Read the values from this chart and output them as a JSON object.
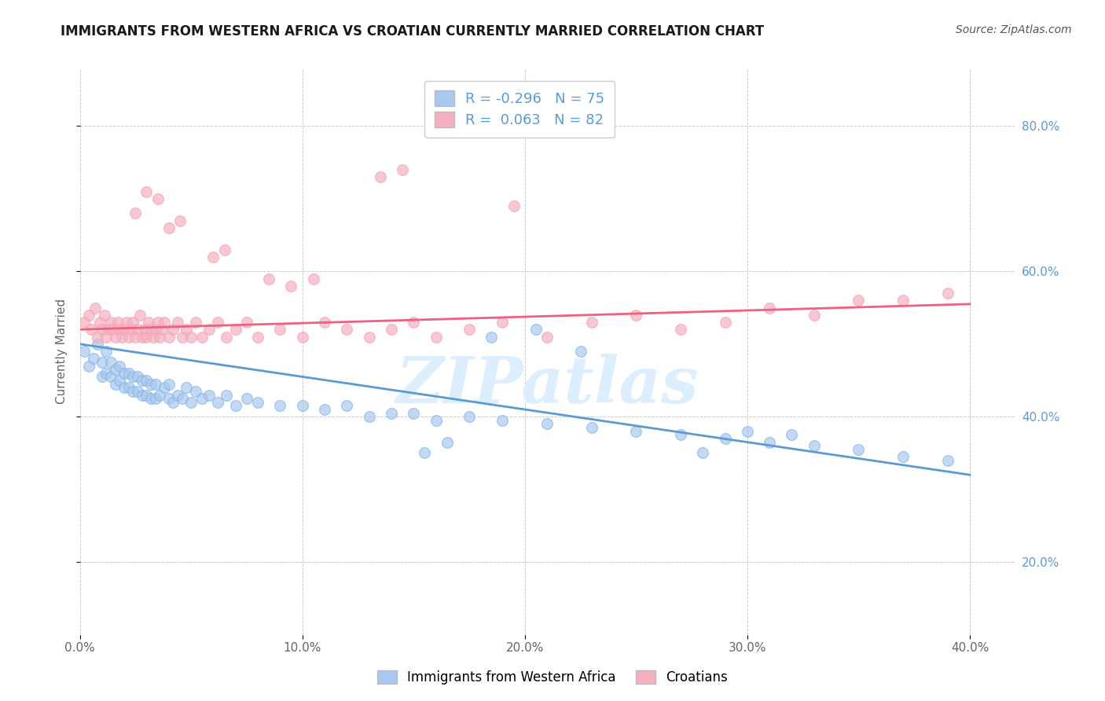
{
  "title": "IMMIGRANTS FROM WESTERN AFRICA VS CROATIAN CURRENTLY MARRIED CORRELATION CHART",
  "source_text": "Source: ZipAtlas.com",
  "ylabel": "Currently Married",
  "xlim": [
    0.0,
    0.42
  ],
  "ylim": [
    0.1,
    0.88
  ],
  "ytick_labels": [
    "20.0%",
    "40.0%",
    "60.0%",
    "80.0%"
  ],
  "ytick_values": [
    0.2,
    0.4,
    0.6,
    0.8
  ],
  "xtick_labels": [
    "0.0%",
    "10.0%",
    "20.0%",
    "30.0%",
    "40.0%"
  ],
  "xtick_values": [
    0.0,
    0.1,
    0.2,
    0.3,
    0.4
  ],
  "blue_R": -0.296,
  "blue_N": 75,
  "pink_R": 0.063,
  "pink_N": 82,
  "blue_color": "#A8C8EE",
  "pink_color": "#F4B0C0",
  "blue_line_color": "#5B9BD5",
  "pink_line_color": "#F06080",
  "blue_edge_color": "#7EB3E8",
  "pink_edge_color": "#F4A0B0",
  "watermark": "ZIPatlas",
  "legend_label_blue": "Immigrants from Western Africa",
  "legend_label_pink": "Croatians",
  "background_color": "#ffffff",
  "blue_scatter_x": [
    0.002,
    0.004,
    0.006,
    0.008,
    0.01,
    0.01,
    0.012,
    0.012,
    0.014,
    0.014,
    0.016,
    0.016,
    0.018,
    0.018,
    0.02,
    0.02,
    0.022,
    0.022,
    0.024,
    0.024,
    0.026,
    0.026,
    0.028,
    0.028,
    0.03,
    0.03,
    0.032,
    0.032,
    0.034,
    0.034,
    0.036,
    0.038,
    0.04,
    0.04,
    0.042,
    0.044,
    0.046,
    0.048,
    0.05,
    0.052,
    0.055,
    0.058,
    0.062,
    0.066,
    0.07,
    0.075,
    0.08,
    0.09,
    0.1,
    0.11,
    0.12,
    0.13,
    0.14,
    0.15,
    0.16,
    0.175,
    0.19,
    0.21,
    0.23,
    0.25,
    0.27,
    0.29,
    0.31,
    0.33,
    0.35,
    0.37,
    0.39,
    0.185,
    0.205,
    0.225,
    0.155,
    0.165,
    0.28,
    0.3,
    0.32
  ],
  "blue_scatter_y": [
    0.49,
    0.47,
    0.48,
    0.5,
    0.455,
    0.475,
    0.46,
    0.49,
    0.455,
    0.475,
    0.445,
    0.465,
    0.45,
    0.47,
    0.44,
    0.46,
    0.44,
    0.46,
    0.435,
    0.455,
    0.435,
    0.455,
    0.43,
    0.45,
    0.43,
    0.45,
    0.425,
    0.445,
    0.425,
    0.445,
    0.43,
    0.44,
    0.425,
    0.445,
    0.42,
    0.43,
    0.425,
    0.44,
    0.42,
    0.435,
    0.425,
    0.43,
    0.42,
    0.43,
    0.415,
    0.425,
    0.42,
    0.415,
    0.415,
    0.41,
    0.415,
    0.4,
    0.405,
    0.405,
    0.395,
    0.4,
    0.395,
    0.39,
    0.385,
    0.38,
    0.375,
    0.37,
    0.365,
    0.36,
    0.355,
    0.345,
    0.34,
    0.51,
    0.52,
    0.49,
    0.35,
    0.365,
    0.35,
    0.38,
    0.375
  ],
  "pink_scatter_x": [
    0.002,
    0.004,
    0.005,
    0.007,
    0.008,
    0.009,
    0.01,
    0.011,
    0.012,
    0.013,
    0.014,
    0.015,
    0.016,
    0.017,
    0.018,
    0.019,
    0.02,
    0.021,
    0.022,
    0.023,
    0.024,
    0.025,
    0.026,
    0.027,
    0.028,
    0.029,
    0.03,
    0.031,
    0.032,
    0.033,
    0.034,
    0.035,
    0.036,
    0.037,
    0.038,
    0.04,
    0.042,
    0.044,
    0.046,
    0.048,
    0.05,
    0.052,
    0.055,
    0.058,
    0.062,
    0.066,
    0.07,
    0.075,
    0.08,
    0.09,
    0.1,
    0.11,
    0.12,
    0.13,
    0.14,
    0.15,
    0.16,
    0.175,
    0.19,
    0.21,
    0.23,
    0.25,
    0.27,
    0.29,
    0.31,
    0.33,
    0.35,
    0.37,
    0.39,
    0.025,
    0.03,
    0.035,
    0.04,
    0.045,
    0.06,
    0.065,
    0.085,
    0.095,
    0.105,
    0.135,
    0.145,
    0.195
  ],
  "pink_scatter_y": [
    0.53,
    0.54,
    0.52,
    0.55,
    0.51,
    0.53,
    0.52,
    0.54,
    0.51,
    0.52,
    0.53,
    0.52,
    0.51,
    0.53,
    0.52,
    0.51,
    0.52,
    0.53,
    0.51,
    0.52,
    0.53,
    0.51,
    0.52,
    0.54,
    0.51,
    0.52,
    0.51,
    0.53,
    0.52,
    0.51,
    0.52,
    0.53,
    0.51,
    0.52,
    0.53,
    0.51,
    0.52,
    0.53,
    0.51,
    0.52,
    0.51,
    0.53,
    0.51,
    0.52,
    0.53,
    0.51,
    0.52,
    0.53,
    0.51,
    0.52,
    0.51,
    0.53,
    0.52,
    0.51,
    0.52,
    0.53,
    0.51,
    0.52,
    0.53,
    0.51,
    0.53,
    0.54,
    0.52,
    0.53,
    0.55,
    0.54,
    0.56,
    0.56,
    0.57,
    0.68,
    0.71,
    0.7,
    0.66,
    0.67,
    0.62,
    0.63,
    0.59,
    0.58,
    0.59,
    0.73,
    0.74,
    0.69
  ],
  "title_fontsize": 12,
  "axis_label_fontsize": 11,
  "tick_fontsize": 11,
  "source_fontsize": 10
}
